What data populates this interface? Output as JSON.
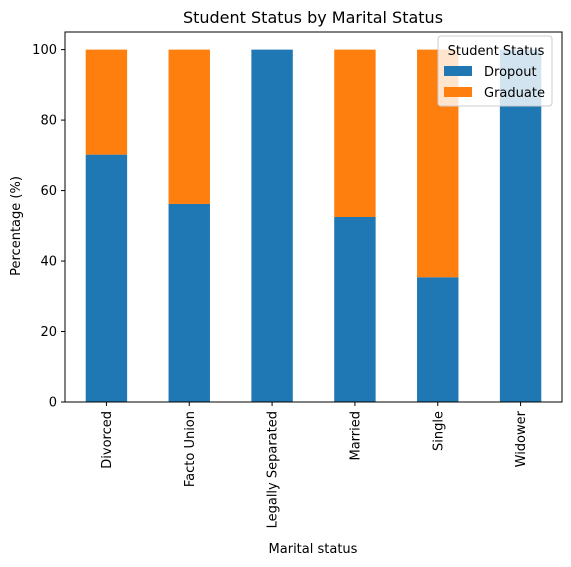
{
  "chart_data": {
    "type": "bar",
    "stacked": true,
    "title": "Student Status by Marital Status",
    "xlabel": "Marital status",
    "ylabel": "Percentage (%)",
    "ylim": [
      0,
      105
    ],
    "yticks": [
      0,
      20,
      40,
      60,
      80,
      100
    ],
    "categories": [
      "Divorced",
      "Facto Union",
      "Legally Separated",
      "Married",
      "Single",
      "Widower"
    ],
    "series": [
      {
        "name": "Dropout",
        "color": "#1f77b4",
        "values": [
          70.2,
          56.2,
          100,
          52.5,
          35.4,
          100
        ]
      },
      {
        "name": "Graduate",
        "color": "#ff7f0e",
        "values": [
          29.8,
          43.8,
          0,
          47.5,
          64.6,
          0
        ]
      }
    ],
    "legend": {
      "title": "Student Status",
      "position": "top-right"
    },
    "grid": false
  }
}
